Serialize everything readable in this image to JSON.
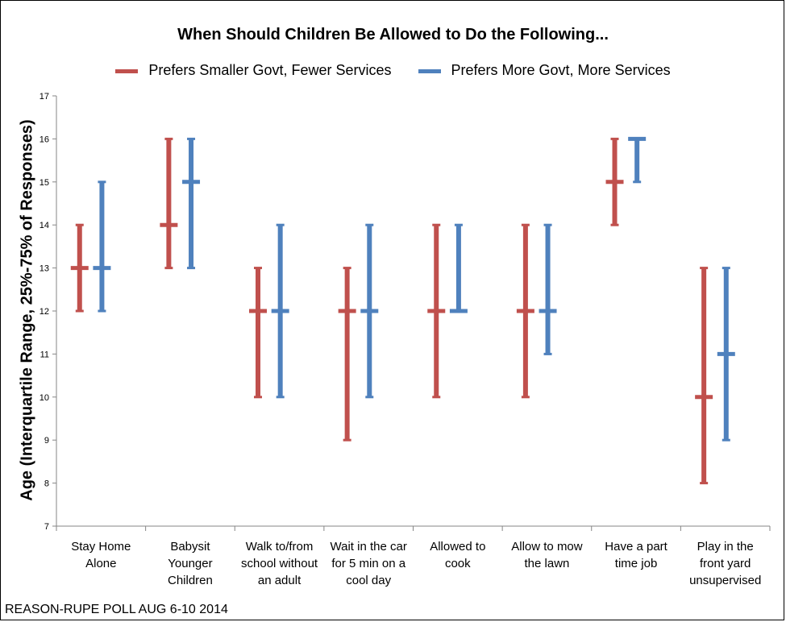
{
  "chart_data": {
    "type": "interquartile-range",
    "title": "When Should Children Be Allowed to Do the Following...",
    "ylabel": "Age (Interquartile Range, 25%-75% of Responses)",
    "ylim": [
      7,
      17
    ],
    "yticks": [
      "7",
      "8",
      "9",
      "10",
      "11",
      "12",
      "13",
      "14",
      "15",
      "16",
      "17"
    ],
    "grid": false,
    "legend_position": "top",
    "categories": [
      [
        "Stay Home",
        "Alone"
      ],
      [
        "Babysit",
        "Younger",
        "Children"
      ],
      [
        "Walk to/from",
        "school without",
        "an adult"
      ],
      [
        "Wait in the car",
        "for 5 min on a",
        "cool day"
      ],
      [
        "Allowed to",
        "cook"
      ],
      [
        "Allow to mow",
        "the lawn"
      ],
      [
        "Have a part",
        "time job"
      ],
      [
        "Play in the",
        "front yard",
        "unsupervised"
      ]
    ],
    "series": [
      {
        "name": "Prefers Smaller Govt, Fewer Services",
        "color": "#c0504d",
        "low": [
          12,
          13,
          10,
          9,
          10,
          10,
          14,
          8
        ],
        "median": [
          13,
          14,
          12,
          12,
          12,
          12,
          15,
          10
        ],
        "high": [
          14,
          16,
          13,
          13,
          14,
          14,
          16,
          13
        ]
      },
      {
        "name": "Prefers More Govt, More Services",
        "color": "#4f81bd",
        "low": [
          12,
          13,
          10,
          10,
          12,
          11,
          15,
          9
        ],
        "median": [
          13,
          15,
          12,
          12,
          12,
          12,
          16,
          11
        ],
        "high": [
          15,
          16,
          14,
          14,
          14,
          14,
          16,
          13
        ]
      }
    ]
  },
  "source_note": "REASON-RUPE POLL AUG 6-10 2014"
}
